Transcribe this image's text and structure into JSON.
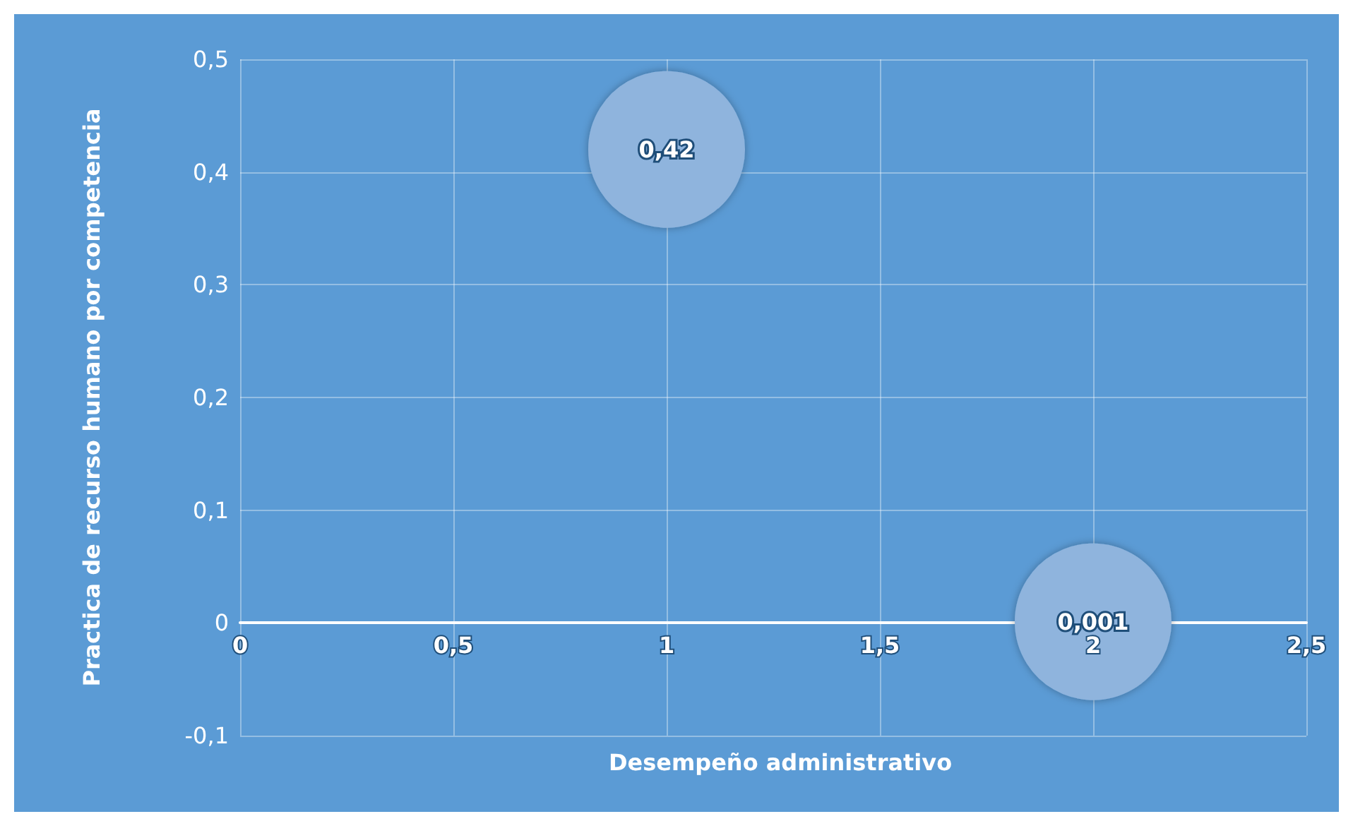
{
  "chart_data": {
    "type": "bubble",
    "xlabel": "Desempeño administrativo",
    "ylabel": "Practica de recurso humano por competencia",
    "x": [
      1,
      2
    ],
    "series": [
      {
        "color": "#8fb4dd",
        "values": [
          0.42,
          0.001
        ],
        "sizes": [
          1,
          1
        ],
        "value_labels": [
          "0,42",
          "0,001"
        ]
      }
    ],
    "xlim": [
      0,
      2.5
    ],
    "xticks": [
      {
        "value": 0,
        "label": "0"
      },
      {
        "value": 0.5,
        "label": "0,5"
      },
      {
        "value": 1,
        "label": "1"
      },
      {
        "value": 1.5,
        "label": "1,5"
      },
      {
        "value": 2,
        "label": "2"
      },
      {
        "value": 2.5,
        "label": "2,5"
      }
    ],
    "ylim": [
      -0.1,
      0.5
    ],
    "yticks": [
      {
        "value": -0.1,
        "label": "-0,1"
      },
      {
        "value": 0,
        "label": "0"
      },
      {
        "value": 0.1,
        "label": "0,1"
      },
      {
        "value": 0.2,
        "label": "0,2"
      },
      {
        "value": 0.3,
        "label": "0,3"
      },
      {
        "value": 0.4,
        "label": "0,4"
      },
      {
        "value": 0.5,
        "label": "0,5"
      }
    ],
    "grid": true
  }
}
